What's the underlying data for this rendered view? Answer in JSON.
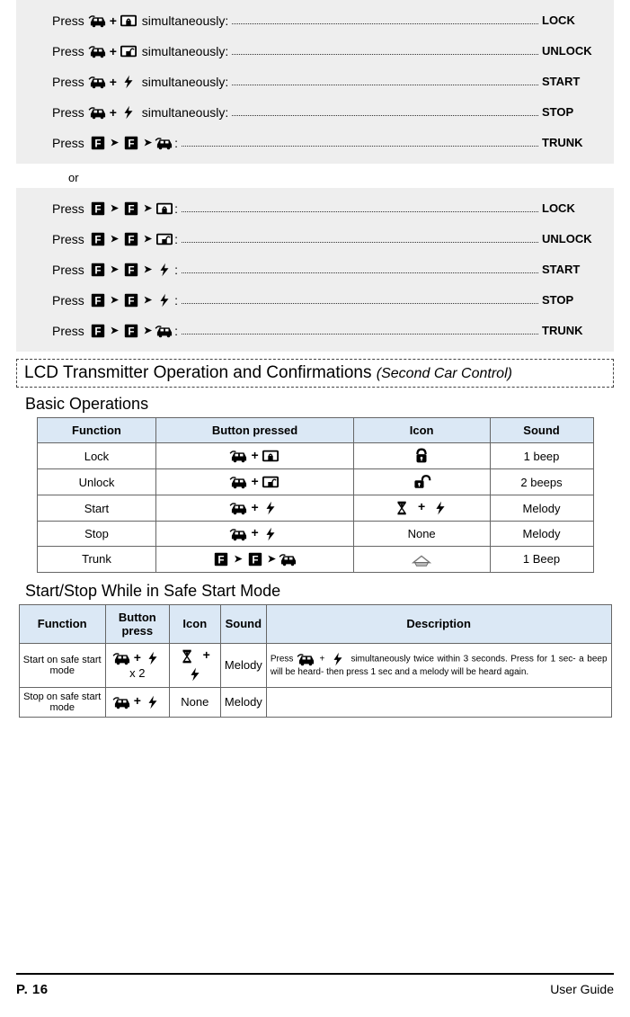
{
  "colors": {
    "gray_bg": "#eeeeee",
    "table_header_bg": "#dbe8f5",
    "border": "#666666",
    "text": "#000000"
  },
  "strings": {
    "press": "Press ",
    "plus": "+",
    "arrow": "▶",
    "simul": " simultaneously:",
    "colon": ":",
    "or": "or",
    "x2": " x 2"
  },
  "block1": [
    {
      "seq": [
        "car",
        "plus",
        "locked"
      ],
      "tail": "simul",
      "result": "LOCK"
    },
    {
      "seq": [
        "car",
        "plus",
        "unlocked"
      ],
      "tail": "simul",
      "result": "UNLOCK"
    },
    {
      "seq": [
        "car",
        "plus",
        "bolt"
      ],
      "tail": "simul",
      "result": "START"
    },
    {
      "seq": [
        "car",
        "plus",
        "bolt"
      ],
      "tail": "simul",
      "result": "STOP"
    },
    {
      "seq": [
        "F",
        "arrow",
        "F",
        "arrow",
        "car"
      ],
      "tail": "colon",
      "result": "TRUNK"
    }
  ],
  "block2": [
    {
      "seq": [
        "F",
        "arrow",
        "F",
        "arrow",
        "locked"
      ],
      "tail": "colon",
      "result": "LOCK"
    },
    {
      "seq": [
        "F",
        "arrow",
        "F",
        "arrow",
        "unlocked"
      ],
      "tail": "colon",
      "result": "UNLOCK"
    },
    {
      "seq": [
        "F",
        "arrow",
        "F",
        "arrow",
        "bolt"
      ],
      "tail": "colon",
      "result": "START"
    },
    {
      "seq": [
        "F",
        "arrow",
        "F",
        "arrow",
        "bolt"
      ],
      "tail": "colon",
      "result": "STOP"
    },
    {
      "seq": [
        "F",
        "arrow",
        "F",
        "arrow",
        "car"
      ],
      "tail": "colon",
      "result": "TRUNK"
    }
  ],
  "section_title": {
    "main": "LCD Transmitter Operation and Confirmations ",
    "sub": "(Second Car Control)"
  },
  "basic_heading": "Basic Operations",
  "basic_table": {
    "columns": [
      "Function",
      "Button pressed",
      "Icon",
      "Sound"
    ],
    "rows": [
      {
        "fn": "Lock",
        "btn": [
          "car",
          "plus",
          "locked"
        ],
        "icon": "padlock-closed",
        "sound": "1 beep"
      },
      {
        "fn": "Unlock",
        "btn": [
          "car",
          "plus",
          "unlocked"
        ],
        "icon": "padlock-open",
        "sound": "2 beeps"
      },
      {
        "fn": "Start",
        "btn": [
          "car",
          "plus",
          "bolt"
        ],
        "icon": "hourglass-bolt",
        "sound": "Melody"
      },
      {
        "fn": "Stop",
        "btn": [
          "car",
          "plus",
          "bolt"
        ],
        "icon": "none",
        "sound": "Melody"
      },
      {
        "fn": "Trunk",
        "btn": [
          "F",
          "arrow",
          "F",
          "arrow",
          "car"
        ],
        "icon": "trunk-open",
        "sound": "1 Beep"
      }
    ]
  },
  "safe_heading": "Start/Stop While in Safe Start Mode",
  "safe_table": {
    "columns": [
      "Function",
      "Button press",
      "Icon",
      "Sound",
      "Description"
    ],
    "rows": [
      {
        "fn": "Start on safe start mode",
        "btn": [
          "car",
          "plus",
          "bolt",
          "x2"
        ],
        "icon": "hourglass-bolt",
        "sound": "Melody",
        "desc_parts": {
          "p1": "Press ",
          "p2": " + ",
          "p3": " simultaneously twice within 3 seconds. Press for 1 sec- a beep will be heard- then press 1 sec and a melody will be heard again."
        }
      },
      {
        "fn": "Stop on safe start mode",
        "btn": [
          "car",
          "plus",
          "bolt"
        ],
        "icon": "none",
        "sound": "Melody",
        "desc_parts": null
      }
    ]
  },
  "footer": {
    "page": "P. 16",
    "right": "User Guide"
  }
}
